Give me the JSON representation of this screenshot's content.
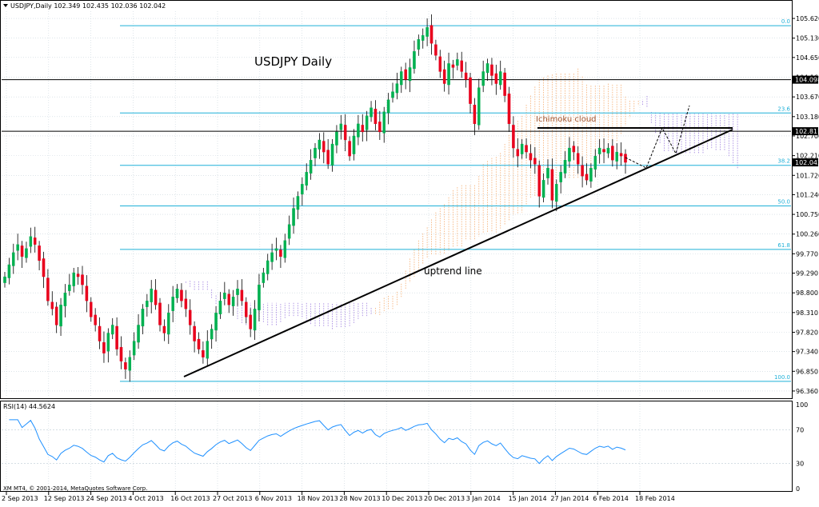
{
  "header": {
    "symbol_line": "USDJPY,Daily  102.349 102.435 102.036 102.042"
  },
  "title": "USDJPY Daily",
  "annotations": {
    "cloud_label": "Ichimoku cloud",
    "trend_label": "uptrend line"
  },
  "rsi": {
    "label": "RSI(14) 44.5624",
    "levels": [
      "100",
      "70",
      "30",
      "0"
    ]
  },
  "copyright": "XM MT4, © 2001-2014, MetaQuotes Software Corp.",
  "price_labels": [
    "104.098",
    "102.817",
    "102.042"
  ],
  "fib_labels": [
    "0.0",
    "23.6",
    "38.2",
    "50.0",
    "61.8",
    "100.0"
  ],
  "colors": {
    "bull": "#00b050",
    "bear": "#e8001c",
    "fib": "#1fb0d8",
    "cloud_up": "#f4a460",
    "cloud_down": "#9370db",
    "rsi": "#1e90ff",
    "grid": "#c8d4dc"
  },
  "chart_data": {
    "type": "candlestick",
    "symbol": "USDJPY",
    "timeframe": "Daily",
    "y_ticks": [
      105.62,
      105.13,
      104.65,
      104.16,
      103.67,
      103.18,
      102.7,
      102.21,
      101.72,
      101.24,
      100.75,
      100.26,
      99.77,
      99.29,
      98.8,
      98.31,
      97.82,
      97.34,
      96.85,
      96.36
    ],
    "ylim": [
      96.2,
      105.8
    ],
    "x_ticks": [
      "2 Sep 2013",
      "12 Sep 2013",
      "24 Sep 2013",
      "4 Oct 2013",
      "16 Oct 2013",
      "27 Oct 2013",
      "6 Nov 2013",
      "18 Nov 2013",
      "28 Nov 2013",
      "10 Dec 2013",
      "20 Dec 2013",
      "3 Jan 2014",
      "15 Jan 2014",
      "27 Jan 2014",
      "6 Feb 2014",
      "18 Feb 2014"
    ],
    "horizontal_lines": [
      104.098,
      102.817
    ],
    "fibonacci": [
      {
        "level": "0.0",
        "price": 105.44
      },
      {
        "level": "23.6",
        "price": 103.27
      },
      {
        "level": "38.2",
        "price": 101.97
      },
      {
        "level": "50.0",
        "price": 100.96
      },
      {
        "level": "61.8",
        "price": 99.88
      },
      {
        "level": "100.0",
        "price": 96.6
      }
    ],
    "close_path": [
      99.2,
      99.5,
      99.8,
      100.0,
      99.7,
      99.9,
      100.2,
      100.0,
      99.6,
      99.2,
      98.6,
      98.4,
      98.0,
      98.5,
      98.8,
      99.0,
      99.3,
      99.2,
      99.0,
      98.6,
      98.2,
      98.0,
      97.6,
      97.3,
      97.8,
      98.0,
      97.4,
      97.1,
      96.9,
      97.2,
      97.6,
      98.0,
      98.4,
      98.6,
      98.9,
      98.5,
      98.0,
      97.8,
      98.3,
      98.7,
      98.9,
      98.6,
      98.4,
      98.0,
      97.6,
      97.4,
      97.2,
      97.6,
      97.9,
      98.3,
      98.6,
      98.8,
      98.5,
      98.7,
      98.9,
      98.6,
      98.2,
      97.9,
      98.4,
      99.0,
      99.3,
      99.6,
      99.8,
      99.9,
      99.7,
      100.1,
      100.5,
      100.9,
      101.2,
      101.5,
      101.8,
      102.1,
      102.4,
      102.6,
      102.3,
      102.0,
      102.5,
      102.8,
      103.0,
      102.6,
      102.2,
      102.7,
      103.0,
      102.8,
      103.2,
      103.4,
      103.0,
      102.8,
      103.3,
      103.6,
      103.8,
      104.0,
      104.3,
      104.1,
      104.4,
      104.8,
      105.1,
      105.2,
      105.4,
      105.0,
      104.7,
      104.3,
      104.0,
      104.5,
      104.4,
      104.6,
      104.3,
      104.1,
      103.5,
      103.0,
      103.9,
      104.3,
      104.5,
      104.2,
      104.0,
      104.3,
      103.7,
      103.0,
      102.4,
      102.2,
      102.5,
      102.3,
      102.1,
      102.0,
      101.2,
      101.6,
      101.9,
      101.1,
      101.5,
      101.8,
      102.1,
      102.4,
      102.3,
      102.0,
      101.7,
      101.6,
      101.9,
      102.2,
      102.4,
      102.3,
      102.4,
      102.1,
      102.3,
      102.2,
      102.042
    ],
    "rsi": {
      "name": "RSI(14)",
      "last": 44.5624,
      "ylim": [
        0,
        100
      ],
      "levels": [
        70,
        30
      ]
    }
  }
}
